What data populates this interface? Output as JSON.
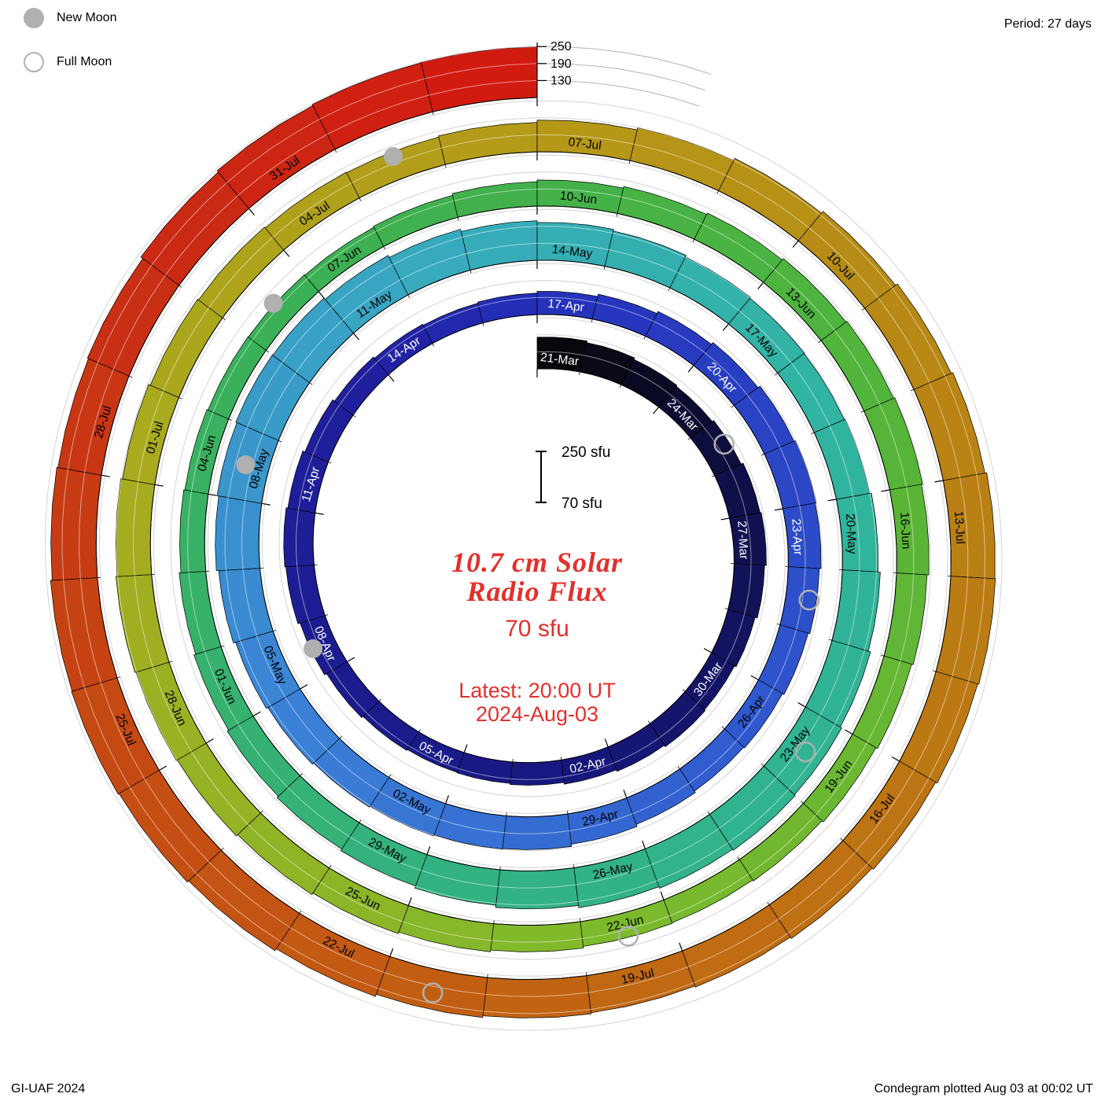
{
  "legend": {
    "new_moon": "New Moon",
    "full_moon": "Full Moon"
  },
  "corner": {
    "period": "Period: 27 days",
    "credit": "GI-UAF 2024",
    "plotted": "Condegram plotted Aug 03 at 00:02 UT"
  },
  "center": {
    "title_line1": "10.7 cm Solar",
    "title_line2": "Radio Flux",
    "value": "70 sfu",
    "latest_label": "Latest: 20:00 UT",
    "latest_date": "2024-Aug-03",
    "color": "#e3302b"
  },
  "scale_bar": {
    "top": "250 sfu",
    "bottom": "70 sfu"
  },
  "colors": {
    "grid": "#b4b4b4",
    "moon_marker": "#b0b0b0",
    "bar_outline": "#000000"
  },
  "chart_data": {
    "type": "spiral_bar",
    "title": "10.7 cm Solar Radio Flux Condegram",
    "units": "sfu",
    "direction": "clockwise",
    "period_days": 27,
    "turns": 5,
    "start_date": "2024-03-21",
    "end_date": "2024-08-02",
    "flux_base_sfu": 70,
    "flux_max_sfu": 250,
    "grid_levels_sfu": [
      130,
      190,
      250
    ],
    "radial_axis_ticks_sfu": [
      130,
      190,
      250
    ],
    "date_labels": [
      "21-Mar",
      "24-Mar",
      "27-Mar",
      "30-Mar",
      "02-Apr",
      "05-Apr",
      "08-Apr",
      "11-Apr",
      "14-Apr",
      "17-Apr",
      "20-Apr",
      "23-Apr",
      "26-Apr",
      "29-Apr",
      "02-May",
      "05-May",
      "08-May",
      "11-May",
      "14-May",
      "17-May",
      "20-May",
      "23-May",
      "26-May",
      "29-May",
      "01-Jun",
      "04-Jun",
      "07-Jun",
      "10-Jun",
      "13-Jun",
      "16-Jun",
      "19-Jun",
      "22-Jun",
      "25-Jun",
      "28-Jun",
      "01-Jul",
      "04-Jul",
      "07-Jul",
      "10-Jul",
      "13-Jul",
      "16-Jul",
      "19-Jul",
      "22-Jul",
      "25-Jul",
      "28-Jul",
      "31-Jul"
    ],
    "values_sfu": [
      182,
      176,
      170,
      166,
      172,
      180,
      184,
      178,
      170,
      164,
      168,
      162,
      156,
      150,
      146,
      144,
      148,
      154,
      162,
      170,
      174,
      168,
      160,
      152,
      146,
      142,
      146,
      152,
      160,
      168,
      176,
      184,
      190,
      186,
      180,
      174,
      168,
      164,
      170,
      178,
      186,
      188,
      192,
      196,
      202,
      208,
      216,
      224,
      230,
      234,
      232,
      226,
      218,
      210,
      204,
      198,
      192,
      188,
      186,
      190,
      196,
      204,
      212,
      218,
      222,
      218,
      212,
      204,
      196,
      188,
      182,
      176,
      170,
      164,
      158,
      154,
      150,
      148,
      146,
      150,
      156,
      162,
      168,
      174,
      180,
      184,
      188,
      184,
      178,
      172,
      166,
      160,
      156,
      158,
      164,
      170,
      176,
      182,
      188,
      192,
      196,
      192,
      186,
      180,
      176,
      172,
      170,
      174,
      182,
      190,
      198,
      206,
      214,
      220,
      226,
      228,
      224,
      218,
      212,
      206,
      202,
      206,
      212,
      220,
      228,
      234,
      238,
      236,
      230,
      226,
      230,
      238,
      244,
      248,
      250
    ],
    "new_moon_days": [
      18,
      48,
      77,
      106
    ],
    "full_moon_days": [
      4,
      34,
      63,
      93,
      122
    ],
    "new_moon_dates": [
      "2024-04-08",
      "2024-05-08",
      "2024-06-06",
      "2024-07-05"
    ],
    "full_moon_dates": [
      "2024-03-25",
      "2024-04-24",
      "2024-05-23",
      "2024-06-22",
      "2024-07-21"
    ],
    "color_stops": [
      {
        "day": 0,
        "color": "#060606"
      },
      {
        "day": 6,
        "color": "#10104f"
      },
      {
        "day": 14,
        "color": "#191985"
      },
      {
        "day": 24,
        "color": "#20209f"
      },
      {
        "day": 27,
        "color": "#2430bb"
      },
      {
        "day": 36,
        "color": "#2f55cd"
      },
      {
        "day": 45,
        "color": "#3b82d6"
      },
      {
        "day": 52,
        "color": "#38a9c0"
      },
      {
        "day": 58,
        "color": "#31b4a4"
      },
      {
        "day": 68,
        "color": "#32b284"
      },
      {
        "day": 78,
        "color": "#3bb054"
      },
      {
        "day": 86,
        "color": "#52b43a"
      },
      {
        "day": 94,
        "color": "#7fba2c"
      },
      {
        "day": 102,
        "color": "#a8ab1f"
      },
      {
        "day": 108,
        "color": "#b59a18"
      },
      {
        "day": 114,
        "color": "#b98214"
      },
      {
        "day": 120,
        "color": "#c06a12"
      },
      {
        "day": 126,
        "color": "#c54c13"
      },
      {
        "day": 131,
        "color": "#c92c14"
      },
      {
        "day": 135,
        "color": "#d21911"
      }
    ]
  }
}
